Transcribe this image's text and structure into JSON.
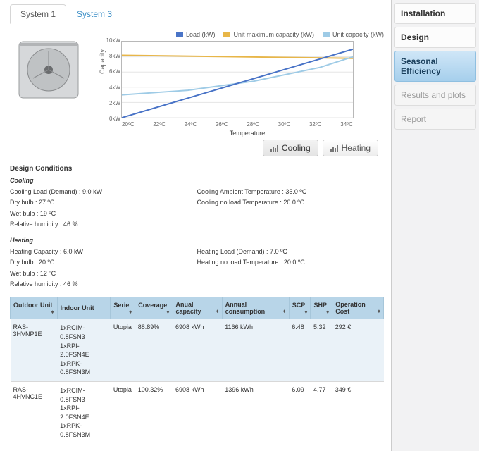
{
  "tabs": [
    {
      "label": "System 1",
      "active": true
    },
    {
      "label": "System 3",
      "active": false
    }
  ],
  "chart": {
    "type": "line",
    "legend": [
      {
        "label": "Load (kW)",
        "color": "#4a74c7"
      },
      {
        "label": "Unit maximum capacity (kW)",
        "color": "#e8b648"
      },
      {
        "label": "Unit capacity (kW)",
        "color": "#9ecbe6"
      }
    ],
    "ylabel": "Capacity",
    "xlabel": "Temperature",
    "ylim": [
      0,
      10
    ],
    "ytick_step": 2,
    "yticks": [
      "10kW",
      "8kW",
      "6kW",
      "4kW",
      "2kW",
      "0kW"
    ],
    "xticks": [
      "20ºC",
      "22ºC",
      "24ºC",
      "26ºC",
      "28ºC",
      "30ºC",
      "32ºC",
      "34ºC"
    ],
    "series": {
      "load": {
        "color": "#4a74c7",
        "width": 2,
        "points": [
          [
            20,
            0.0
          ],
          [
            34,
            9.0
          ]
        ]
      },
      "umax": {
        "color": "#e8b648",
        "width": 2,
        "points": [
          [
            20,
            8.2
          ],
          [
            34,
            7.8
          ]
        ]
      },
      "ucap": {
        "color": "#9ecbe6",
        "width": 2,
        "points": [
          [
            20,
            3.0
          ],
          [
            24,
            3.6
          ],
          [
            28,
            4.8
          ],
          [
            32,
            6.6
          ],
          [
            34,
            8.0
          ]
        ]
      }
    },
    "plot_border": "#b8b8b8",
    "grid_color": "#e5e5e5",
    "background_color": "#ffffff"
  },
  "mode_buttons": {
    "cooling": "Cooling",
    "heating": "Heating",
    "active": "cooling"
  },
  "design": {
    "title": "Design Conditions",
    "cooling": {
      "heading": "Cooling",
      "left": [
        "Cooling Load (Demand) : 9.0 kW",
        "Dry bulb : 27 ºC",
        "Wet bulb : 19 ºC",
        "Relative humidity : 46 %"
      ],
      "right": [
        "Cooling Ambient Temperature : 35.0 ºC",
        "Cooling no load Temperature : 20.0 ºC"
      ]
    },
    "heating": {
      "heading": "Heating",
      "left": [
        "Heating Capacity : 6.0 kW",
        "Dry bulb : 20 ºC",
        "Wet bulb : 12 ºC",
        "Relative humidity : 46 %"
      ],
      "right": [
        "Heating Load (Demand) : 7.0 ºC",
        "Heating no load Temperature : 20.0 ºC"
      ]
    }
  },
  "table": {
    "columns": [
      "Outdoor Unit",
      "Indoor Unit",
      "Serie",
      "Coverage",
      "Anual capacity",
      "Annual consumption",
      "SCP",
      "SHP",
      "Operation Cost"
    ],
    "rows": [
      {
        "outdoor": "RAS-3HVNP1E",
        "indoor": [
          "1xRCIM-0.8FSN3",
          "1xRPI-2.0FSN4E",
          "1xRPK-0.8FSN3M"
        ],
        "serie": "Utopia",
        "coverage": "88.89%",
        "capacity": "6908 kWh",
        "consumption": "1166 kWh",
        "scp": "6.48",
        "shp": "5.32",
        "cost": "292 €"
      },
      {
        "outdoor": "RAS-4HVNC1E",
        "indoor": [
          "1xRCIM-0.8FSN3",
          "1xRPI-2.0FSN4E",
          "1xRPK-0.8FSN3M"
        ],
        "serie": "Utopia",
        "coverage": "100.32%",
        "capacity": "6908 kWh",
        "consumption": "1396 kWh",
        "scp": "6.09",
        "shp": "4.77",
        "cost": "349 €"
      }
    ]
  },
  "side_nav": [
    {
      "label": "Installation",
      "state": "bold"
    },
    {
      "label": "Design",
      "state": "bold"
    },
    {
      "label": "Seasonal Efficiency",
      "state": "active"
    },
    {
      "label": "Results and plots",
      "state": "disabled"
    },
    {
      "label": "Report",
      "state": "disabled"
    }
  ]
}
